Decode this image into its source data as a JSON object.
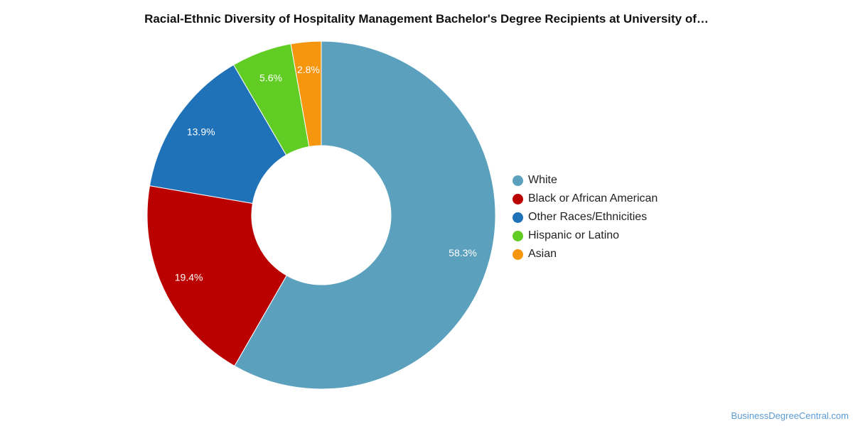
{
  "chart_data": {
    "type": "pie",
    "variant": "donut",
    "title": "Racial-Ethnic Diversity of Hospitality Management Bachelor's Degree Recipients at University of…",
    "legend_position": "right",
    "slices": [
      {
        "name": "White",
        "value": 58.3,
        "label": "58.3%",
        "color": "#5ba1be"
      },
      {
        "name": "Black or African American",
        "value": 19.4,
        "label": "19.4%",
        "color": "#bb0000"
      },
      {
        "name": "Other Races/Ethnicities",
        "value": 13.9,
        "label": "13.9%",
        "color": "#1f72b8"
      },
      {
        "name": "Hispanic or Latino",
        "value": 5.6,
        "label": "5.6%",
        "color": "#61cc24"
      },
      {
        "name": "Asian",
        "value": 2.8,
        "label": "2.8%",
        "color": "#f6950e"
      }
    ]
  },
  "watermark": "BusinessDegreeCentral.com"
}
